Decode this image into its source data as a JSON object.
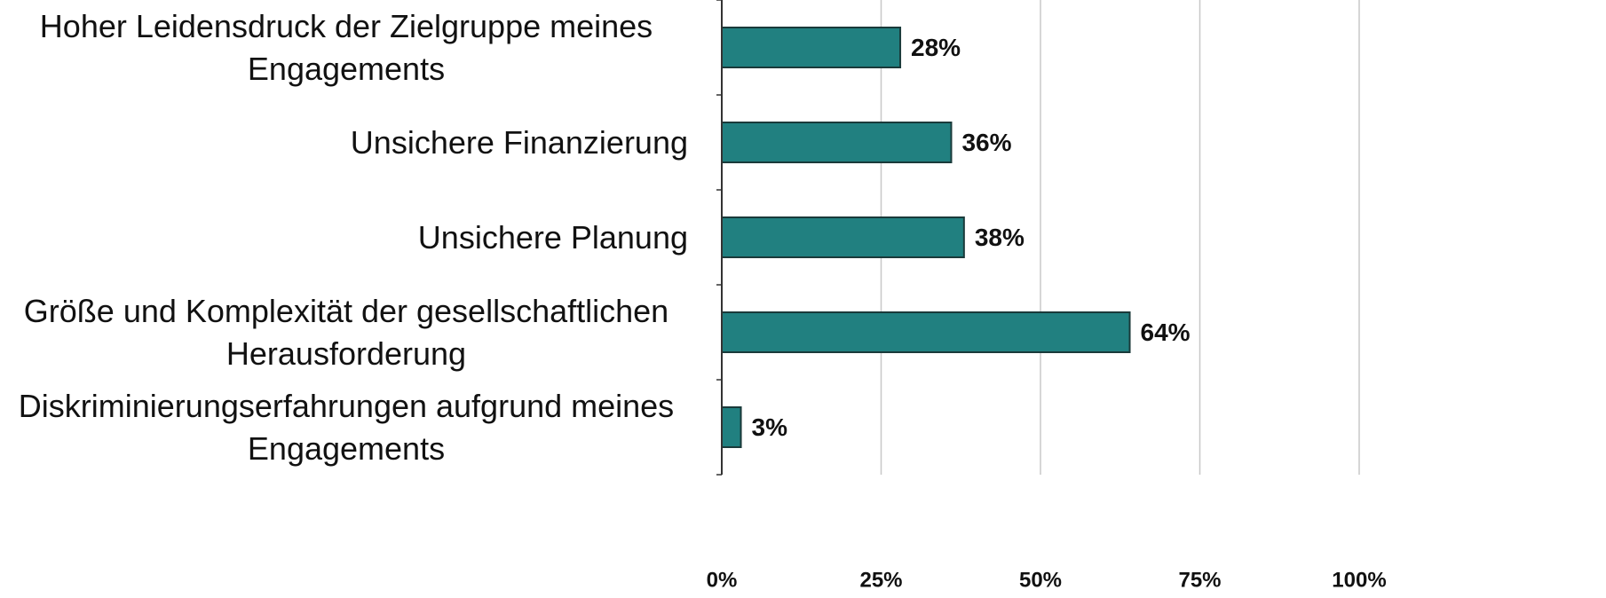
{
  "chart_data": {
    "type": "barh",
    "categories": [
      "Hoher Leidensdruck der Zielgruppe meines Engagements",
      "Unsichere Finanzierung",
      "Unsichere Planung",
      "Größe und Komplexität der gesellschaftlichen Herausforderung",
      "Diskriminierungserfahrungen aufgrund meines Engagements"
    ],
    "values": [
      28,
      36,
      38,
      64,
      3
    ],
    "value_labels": [
      "28%",
      "36%",
      "38%",
      "64%",
      "3%"
    ],
    "color": "#218080",
    "xlim": [
      0,
      100
    ],
    "xticks": [
      {
        "value": 0,
        "label": "0%"
      },
      {
        "value": 25,
        "label": "25%"
      },
      {
        "value": 50,
        "label": "50%"
      },
      {
        "value": 75,
        "label": "75%"
      },
      {
        "value": 100,
        "label": "100%"
      }
    ],
    "grid": true
  }
}
